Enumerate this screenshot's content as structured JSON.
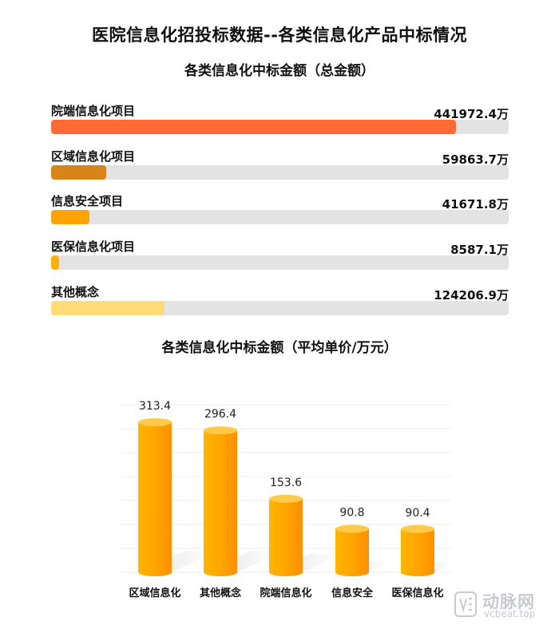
{
  "title": "医院信息化招投标数据--各类信息化产品中标情况",
  "chart_data": [
    {
      "type": "bar",
      "orientation": "horizontal",
      "title": "各类信息化中标金额（总金额）",
      "unit": "万",
      "categories": [
        "院端信息化项目",
        "区域信息化项目",
        "信息安全项目",
        "医保信息化项目",
        "其他概念"
      ],
      "values": [
        441972.4,
        59863.7,
        41671.8,
        8587.1,
        124206.9
      ],
      "value_labels": [
        "441972.4万",
        "59863.7万",
        "41671.8万",
        "8587.1万",
        "124206.9万"
      ],
      "colors": [
        "#ff6a36",
        "#d88419",
        "#ffa302",
        "#ffb100",
        "#ffdc78"
      ],
      "track_color": "#e3e3e3",
      "xlim": [
        0,
        500000
      ]
    },
    {
      "type": "bar",
      "title": "各类信息化中标金额（平均单价/万元）",
      "categories": [
        "区域信息化",
        "其他概念",
        "院端信息化",
        "信息安全",
        "医保信息化"
      ],
      "values": [
        313.4,
        296.4,
        153.6,
        90.8,
        90.4
      ],
      "value_labels": [
        "313.4",
        "296.4",
        "153.6",
        "90.8",
        "90.4"
      ],
      "ylim": [
        0,
        350
      ],
      "grid": true,
      "color": "#ffa300"
    }
  ],
  "watermark": {
    "name": "动脉网",
    "site": "vcbeat.top"
  }
}
